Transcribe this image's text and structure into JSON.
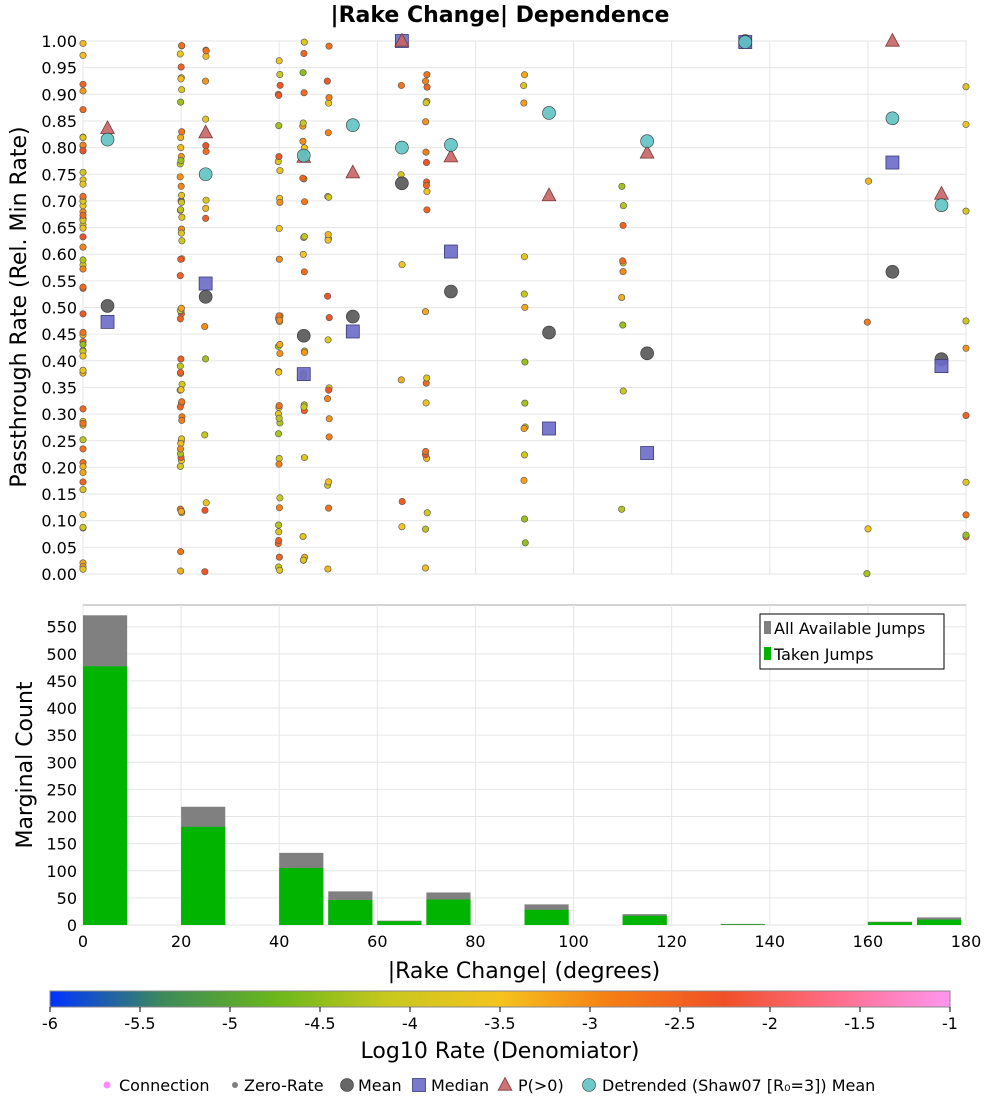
{
  "chart_data": [
    {
      "type": "scatter",
      "title": "|Rake Change| Dependence",
      "ylabel": "Passthrough Rate (Rel. Min Rate)",
      "xlim": [
        0,
        180
      ],
      "ylim": [
        0,
        1
      ],
      "grid": true,
      "y_ticks": [
        "0.00",
        "0.05",
        "0.10",
        "0.15",
        "0.20",
        "0.25",
        "0.30",
        "0.35",
        "0.40",
        "0.45",
        "0.50",
        "0.55",
        "0.60",
        "0.65",
        "0.70",
        "0.75",
        "0.80",
        "0.85",
        "0.90",
        "0.95",
        "1.00"
      ],
      "y_tick_values": [
        0,
        0.05,
        0.1,
        0.15,
        0.2,
        0.25,
        0.3,
        0.35,
        0.4,
        0.45,
        0.5,
        0.55,
        0.6,
        0.65,
        0.7,
        0.75,
        0.8,
        0.85,
        0.9,
        0.95,
        1.0
      ],
      "series": [
        {
          "name": "Mean",
          "color": "#555555",
          "marker": "circle",
          "points": [
            [
              5,
              0.503
            ],
            [
              25,
              0.52
            ],
            [
              45,
              0.447
            ],
            [
              55,
              0.483
            ],
            [
              65,
              0.733
            ],
            [
              75,
              0.53
            ],
            [
              95,
              0.453
            ],
            [
              115,
              0.414
            ],
            [
              135,
              1.0
            ],
            [
              165,
              0.567
            ],
            [
              175,
              0.403
            ]
          ]
        },
        {
          "name": "Median",
          "color": "#6a6ac8",
          "marker": "square",
          "points": [
            [
              5,
              0.473
            ],
            [
              25,
              0.545
            ],
            [
              45,
              0.375
            ],
            [
              55,
              0.455
            ],
            [
              65,
              1.0
            ],
            [
              75,
              0.605
            ],
            [
              95,
              0.273
            ],
            [
              115,
              0.227
            ],
            [
              135,
              0.998
            ],
            [
              165,
              0.772
            ],
            [
              175,
              0.39
            ]
          ]
        },
        {
          "name": "P(>0)",
          "color": "#c86464",
          "marker": "triangle",
          "points": [
            [
              5,
              0.836
            ],
            [
              25,
              0.828
            ],
            [
              45,
              0.782
            ],
            [
              55,
              0.753
            ],
            [
              65,
              1.0
            ],
            [
              75,
              0.783
            ],
            [
              95,
              0.71
            ],
            [
              115,
              0.79
            ],
            [
              165,
              1.0
            ],
            [
              175,
              0.713
            ]
          ]
        },
        {
          "name": "Detrended (Shaw07 [R₀=3]) Mean",
          "color": "#5fc3c3",
          "marker": "circle",
          "points": [
            [
              5,
              0.815
            ],
            [
              25,
              0.75
            ],
            [
              45,
              0.785
            ],
            [
              55,
              0.842
            ],
            [
              65,
              0.8
            ],
            [
              75,
              0.805
            ],
            [
              95,
              0.865
            ],
            [
              115,
              0.812
            ],
            [
              135,
              0.998
            ],
            [
              165,
              0.855
            ],
            [
              175,
              0.692
            ]
          ]
        }
      ]
    },
    {
      "type": "bar",
      "ylabel": "Marginal Count",
      "xlabel": "|Rake Change| (degrees)",
      "xlim": [
        0,
        180
      ],
      "ylim": [
        0,
        590
      ],
      "grid": true,
      "legend_position": "top-right",
      "x_ticks": [
        "0",
        "20",
        "40",
        "60",
        "80",
        "100",
        "120",
        "140",
        "160",
        "180"
      ],
      "x_tick_values": [
        0,
        20,
        40,
        60,
        80,
        100,
        120,
        140,
        160,
        180
      ],
      "y_ticks": [
        "0",
        "50",
        "100",
        "150",
        "200",
        "250",
        "300",
        "350",
        "400",
        "450",
        "500",
        "550"
      ],
      "y_tick_values": [
        0,
        50,
        100,
        150,
        200,
        250,
        300,
        350,
        400,
        450,
        500,
        550
      ],
      "bin_starts": [
        0,
        20,
        40,
        50,
        60,
        70,
        90,
        110,
        130,
        160,
        170
      ],
      "bin_width": 9,
      "series": [
        {
          "name": "All Available Jumps",
          "color": "#808080",
          "values": [
            571,
            218,
            133,
            62,
            8,
            60,
            38,
            20,
            2,
            6,
            14
          ]
        },
        {
          "name": "Taken Jumps",
          "color": "#00b400",
          "values": [
            477,
            181,
            105,
            46,
            7,
            47,
            28,
            17,
            1,
            5,
            10
          ]
        }
      ]
    },
    {
      "type": "colorbar",
      "label": "Log10 Rate (Denomiator)",
      "range": [
        -6,
        -1
      ],
      "ticks": [
        "-6",
        "-5.5",
        "-5",
        "-4.5",
        "-4",
        "-3.5",
        "-3",
        "-2.5",
        "-2",
        "-1.5",
        "-1"
      ],
      "tick_values": [
        -6,
        -5.5,
        -5,
        -4.5,
        -4,
        -3.5,
        -3,
        -2.5,
        -2,
        -1.5,
        -1
      ],
      "color_stops": [
        "#0033ff",
        "#3c8a5a",
        "#6ab71b",
        "#c8c81e",
        "#f5c31e",
        "#f57d14",
        "#f05028",
        "#ff6e8c",
        "#ff96f0"
      ]
    }
  ],
  "legend_key": [
    {
      "label": "Connection",
      "color": "#ff8cff",
      "marker": "dot-large"
    },
    {
      "label": "Zero-Rate",
      "color": "#808080",
      "marker": "dot-small"
    },
    {
      "label": "Mean",
      "color": "#555555",
      "marker": "circle"
    },
    {
      "label": "Median",
      "color": "#6a6ac8",
      "marker": "square"
    },
    {
      "label": "P(>0)",
      "color": "#c86464",
      "marker": "triangle"
    },
    {
      "label": "Detrended (Shaw07 [R₀=3]) Mean",
      "color": "#5fc3c3",
      "marker": "circle"
    }
  ]
}
